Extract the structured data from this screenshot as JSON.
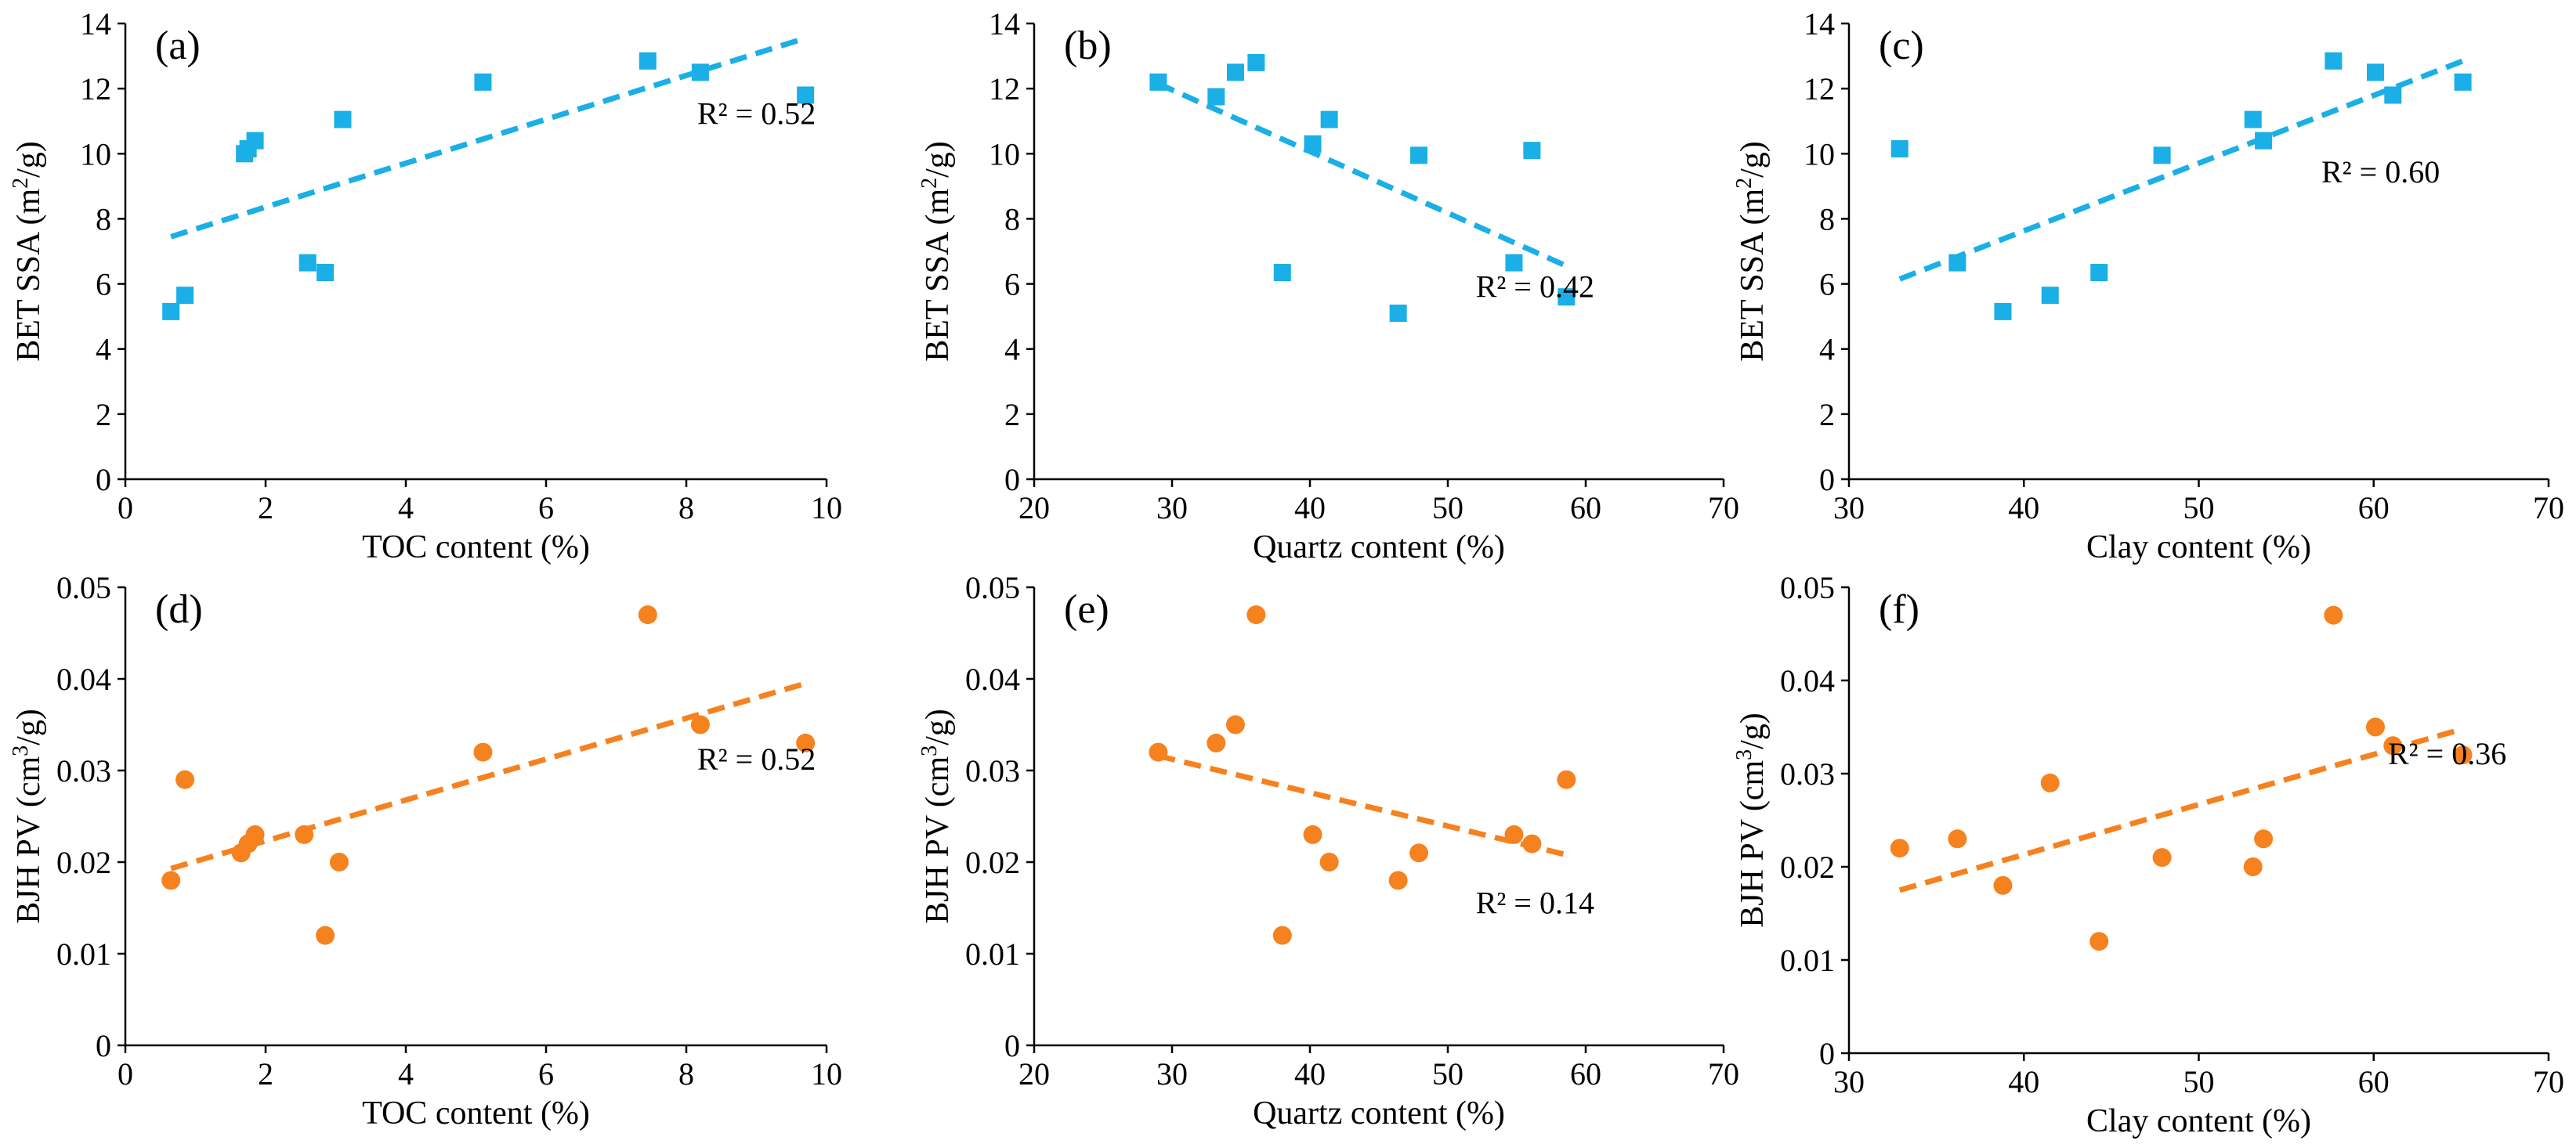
{
  "colors": {
    "blue": "#1AAFE6",
    "orange": "#F5821F",
    "axis": "#000000"
  },
  "chart_data": [
    {
      "type": "scatter",
      "panel": "(a)",
      "xlabel": "TOC content (%)",
      "ylabel": "BET SSA (m²/g)",
      "xlim": [
        0,
        10
      ],
      "ylim": [
        0,
        14
      ],
      "xticks": [
        0,
        2,
        4,
        6,
        8,
        10
      ],
      "yticks": [
        0,
        2,
        4,
        6,
        8,
        10,
        12,
        14
      ],
      "x": [
        0.65,
        0.85,
        1.7,
        1.75,
        1.85,
        2.6,
        2.85,
        3.1,
        5.1,
        7.45,
        8.2,
        9.7
      ],
      "y": [
        5.15,
        5.65,
        10.0,
        10.15,
        10.4,
        6.65,
        6.35,
        11.05,
        12.2,
        12.85,
        12.5,
        11.8
      ],
      "marker": "square",
      "color": "blue",
      "trendline": {
        "x": [
          0.65,
          9.7
        ],
        "y": [
          7.45,
          13.55
        ]
      },
      "r2": "R² = 0.52"
    },
    {
      "type": "scatter",
      "panel": "(b)",
      "xlabel": "Quartz content (%)",
      "ylabel": "BET SSA (m²/g)",
      "xlim": [
        20,
        70
      ],
      "ylim": [
        0,
        14
      ],
      "xticks": [
        20,
        30,
        40,
        50,
        60,
        70
      ],
      "yticks": [
        0,
        2,
        4,
        6,
        8,
        10,
        12,
        14
      ],
      "x": [
        29.0,
        33.2,
        34.6,
        36.1,
        38.0,
        40.2,
        41.4,
        46.4,
        47.9,
        54.8,
        56.1,
        58.6
      ],
      "y": [
        12.2,
        11.75,
        12.5,
        12.8,
        6.35,
        10.3,
        11.05,
        5.1,
        9.95,
        6.65,
        10.1,
        5.6
      ],
      "marker": "square",
      "color": "blue",
      "trendline": {
        "x": [
          29.0,
          58.6
        ],
        "y": [
          12.15,
          6.55
        ]
      },
      "r2": "R² = 0.42"
    },
    {
      "type": "scatter",
      "panel": "(c)",
      "xlabel": "Clay content (%)",
      "ylabel": "BET SSA (m²/g)",
      "xlim": [
        30,
        70
      ],
      "ylim": [
        0,
        14
      ],
      "xticks": [
        30,
        40,
        50,
        60,
        70
      ],
      "yticks": [
        0,
        2,
        4,
        6,
        8,
        10,
        12,
        14
      ],
      "x": [
        32.9,
        36.2,
        38.8,
        41.5,
        44.3,
        47.9,
        53.1,
        53.7,
        57.7,
        60.1,
        61.1,
        65.1
      ],
      "y": [
        10.15,
        6.65,
        5.15,
        5.65,
        6.35,
        9.95,
        11.05,
        10.4,
        12.85,
        12.5,
        11.8,
        12.2
      ],
      "marker": "square",
      "color": "blue",
      "trendline": {
        "x": [
          32.9,
          65.1
        ],
        "y": [
          6.15,
          12.85
        ]
      },
      "r2": "R² = 0.60"
    },
    {
      "type": "scatter",
      "panel": "(d)",
      "xlabel": "TOC content (%)",
      "ylabel": "BJH PV (cm³/g)",
      "xlim": [
        0,
        10
      ],
      "ylim": [
        0,
        0.05
      ],
      "xticks": [
        0,
        2,
        4,
        6,
        8,
        10
      ],
      "yticks": [
        0,
        0.01,
        0.02,
        0.03,
        0.04,
        0.05
      ],
      "x": [
        0.65,
        0.85,
        1.65,
        1.75,
        1.85,
        2.55,
        2.85,
        3.05,
        5.1,
        7.45,
        8.2,
        9.7
      ],
      "y": [
        0.018,
        0.029,
        0.021,
        0.022,
        0.023,
        0.023,
        0.012,
        0.02,
        0.032,
        0.047,
        0.035,
        0.033
      ],
      "marker": "circle",
      "color": "orange",
      "trendline": {
        "x": [
          0.65,
          9.7
        ],
        "y": [
          0.0193,
          0.0395
        ]
      },
      "r2": "R² = 0.52"
    },
    {
      "type": "scatter",
      "panel": "(e)",
      "xlabel": "Quartz content (%)",
      "ylabel": "BJH PV (cm³/g)",
      "xlim": [
        20,
        70
      ],
      "ylim": [
        0,
        0.05
      ],
      "xticks": [
        20,
        30,
        40,
        50,
        60,
        70
      ],
      "yticks": [
        0,
        0.01,
        0.02,
        0.03,
        0.04,
        0.05
      ],
      "x": [
        29.0,
        33.2,
        34.6,
        36.1,
        38.0,
        40.2,
        41.4,
        46.4,
        47.9,
        54.8,
        56.1,
        58.6
      ],
      "y": [
        0.032,
        0.033,
        0.035,
        0.047,
        0.012,
        0.023,
        0.02,
        0.018,
        0.021,
        0.023,
        0.022,
        0.029
      ],
      "marker": "circle",
      "color": "orange",
      "trendline": {
        "x": [
          29.0,
          58.6
        ],
        "y": [
          0.0316,
          0.0208
        ]
      },
      "r2": "R² = 0.14"
    },
    {
      "type": "scatter",
      "panel": "(f)",
      "xlabel": "Clay content (%)",
      "ylabel": "BJH PV (cm³/g)",
      "xlim": [
        30,
        70
      ],
      "ylim": [
        0,
        0.05
      ],
      "xticks": [
        30,
        40,
        50,
        60,
        70
      ],
      "yticks": [
        0,
        0.01,
        0.02,
        0.03,
        0.04,
        0.05
      ],
      "x": [
        32.9,
        36.2,
        38.8,
        41.5,
        44.3,
        47.9,
        53.1,
        53.7,
        57.7,
        60.1,
        61.1,
        65.1
      ],
      "y": [
        0.022,
        0.023,
        0.018,
        0.029,
        0.012,
        0.021,
        0.02,
        0.023,
        0.047,
        0.035,
        0.033,
        0.032
      ],
      "marker": "circle",
      "color": "orange",
      "trendline": {
        "x": [
          32.9,
          65.1
        ],
        "y": [
          0.0175,
          0.0348
        ]
      },
      "r2": "R² = 0.36"
    }
  ]
}
